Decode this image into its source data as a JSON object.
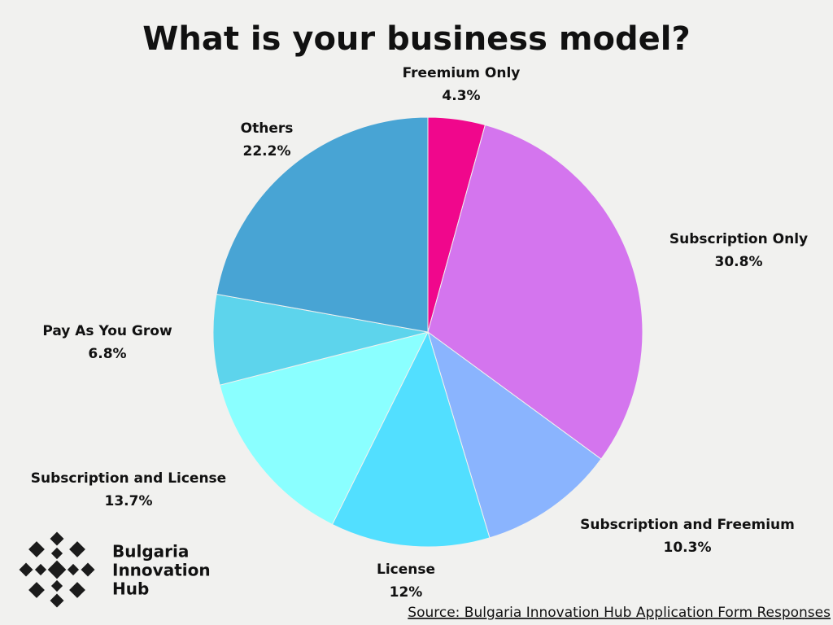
{
  "chart_data": {
    "type": "pie",
    "title": "What is your business model?",
    "categories": [
      "Freemium Only",
      "Subscription Only",
      "Subscription and Freemium",
      "License",
      "Subscription and License",
      "Pay As You Grow",
      "Others"
    ],
    "values": [
      4.3,
      30.8,
      10.3,
      12,
      13.7,
      6.8,
      22.2
    ],
    "value_labels": [
      "4.3%",
      "30.8%",
      "10.3%",
      "12%",
      "13.7%",
      "6.8%",
      "22.2%"
    ],
    "colors": [
      "#f0078c",
      "#d475ee",
      "#8ab4fe",
      "#52dfff",
      "#8affff",
      "#5dd4ec",
      "#48a4d4"
    ],
    "source": "Source: Bulgaria Innovation Hub Application Form Responses"
  },
  "logo": {
    "lines": [
      "Bulgaria",
      "Innovation",
      "Hub"
    ]
  }
}
